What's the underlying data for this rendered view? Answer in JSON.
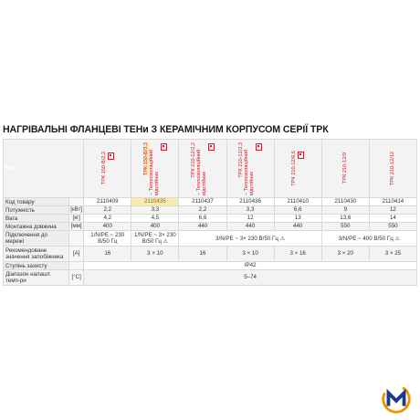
{
  "title": "НАГРІВАЛЬНІ ФЛАНЦЕВІ ТЕНи З КЕРАМІЧНИМ КОРПУСОМ СЕРІЇ ТРК",
  "header_label": "Тип",
  "models": [
    {
      "name": "ТРК 150-В/2,2",
      "note": ""
    },
    {
      "name": "ТРК 150-В/3,3",
      "note": "– Теплоізоляційний відстійник"
    },
    {
      "name": "ТРК 210-12/2,2",
      "note": "– Теплоізоляційний відстійник"
    },
    {
      "name": "ТРК 210-12/3,3",
      "note": "– Теплоізоляційний відстійник"
    },
    {
      "name": "ТРК 210-12/6,6",
      "note": ""
    },
    {
      "name": "ТРК 210-12/9",
      "note": ""
    },
    {
      "name": "ТРК 210-12/12",
      "note": ""
    }
  ],
  "rows": {
    "code": {
      "label": "Код товару",
      "unit": "",
      "values": [
        "2110409",
        "2110435",
        "2110437",
        "2110436",
        "2110410",
        "2110430",
        "2110414"
      ]
    },
    "power": {
      "label": "Потужність",
      "unit": "[кВт]",
      "values": [
        "2,2",
        "3,3",
        "2,2",
        "3,3",
        "6,6",
        "9",
        "12"
      ]
    },
    "weight": {
      "label": "Вага",
      "unit": "[кг]",
      "values": [
        "4,2",
        "4,5",
        "6,6",
        "12",
        "13",
        "13,6",
        "14"
      ]
    },
    "length": {
      "label": "Монтажна довжина",
      "unit": "[мм]",
      "values": [
        "400",
        "400",
        "440",
        "440",
        "440",
        "550",
        "550"
      ]
    },
    "connection": {
      "label": "Підключення до мережі",
      "unit": "",
      "v1": "1/N/PE ~ 230 В/50 Гц",
      "v2": "1/N/PE ~ 3× 230 В/50 Гц ⚠",
      "v3": "3/N/PE ~ 3× 230 В/50 Гц ⚠",
      "v4": "3/N/PE ~ 400 В/50 Гц ⚠"
    },
    "fuse": {
      "label": "Рекомендоване значення запобіжника",
      "unit": "[A]",
      "values": [
        "16",
        "3 × 10",
        "16",
        "3 × 10",
        "3 × 16",
        "3 × 20",
        "3 × 25"
      ]
    },
    "protection": {
      "label": "Ступінь захисту",
      "unit": "",
      "value": "IP42"
    },
    "temp": {
      "label": "Діапазон налашт. темп-ри",
      "unit": "[°C]",
      "value": "5–74"
    }
  },
  "highlight_code": "2110435",
  "logo": {
    "letter": "M",
    "colors": {
      "blue": "#1d3a8a",
      "orange": "#f39200"
    }
  },
  "colors": {
    "accent": "#c8202e",
    "highlight": "#f7ecb0"
  }
}
